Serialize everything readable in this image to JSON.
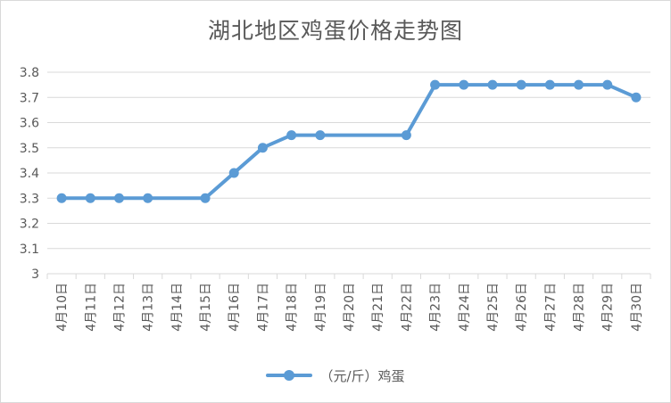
{
  "chart_data": {
    "type": "line",
    "title": "湖北地区鸡蛋价格走势图",
    "categories": [
      "4月10日",
      "4月11日",
      "4月12日",
      "4月13日",
      "4月14日",
      "4月15日",
      "4月16日",
      "4月17日",
      "4月18日",
      "4月19日",
      "4月20日",
      "4月21日",
      "4月22日",
      "4月23日",
      "4月24日",
      "4月25日",
      "4月26日",
      "4月27日",
      "4月28日",
      "4月29日",
      "4月30日"
    ],
    "series": [
      {
        "name": "（元/斤）鸡蛋",
        "values": [
          3.3,
          3.3,
          3.3,
          3.3,
          null,
          3.3,
          3.4,
          3.5,
          3.55,
          3.55,
          null,
          null,
          3.55,
          3.75,
          3.75,
          3.75,
          3.75,
          3.75,
          3.75,
          3.75,
          3.7
        ],
        "color": "#5b9bd5"
      }
    ],
    "ylim": [
      3,
      3.8
    ],
    "yticks": [
      "3",
      "3.1",
      "3.2",
      "3.3",
      "3.4",
      "3.5",
      "3.6",
      "3.7",
      "3.8"
    ],
    "grid": true,
    "legend": "bottom",
    "connect_gaps": true
  }
}
